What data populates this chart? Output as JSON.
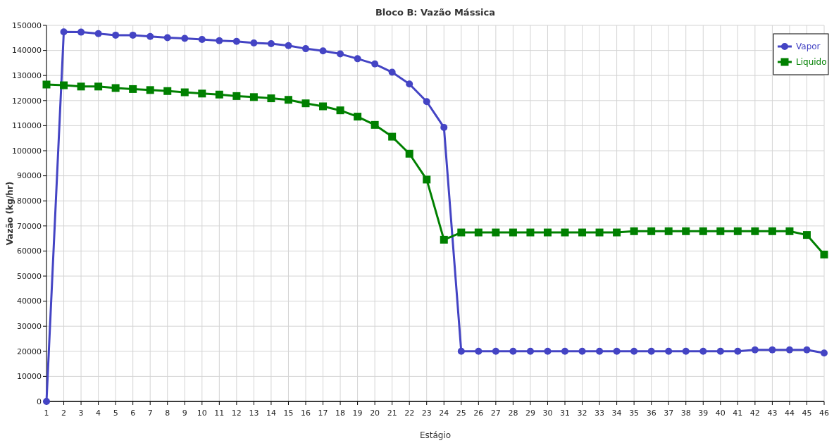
{
  "chart_data": {
    "type": "line",
    "title": "Bloco B: Vazão Mássica",
    "xlabel": "Estágio",
    "ylabel": "Vazão (kg/hr)",
    "x": [
      1,
      2,
      3,
      4,
      5,
      6,
      7,
      8,
      9,
      10,
      11,
      12,
      13,
      14,
      15,
      16,
      17,
      18,
      19,
      20,
      21,
      22,
      23,
      24,
      25,
      26,
      27,
      28,
      29,
      30,
      31,
      32,
      33,
      34,
      35,
      36,
      37,
      38,
      39,
      40,
      41,
      42,
      43,
      44,
      45,
      46
    ],
    "xlim": [
      1,
      46
    ],
    "xticks": [
      1,
      2,
      3,
      4,
      5,
      6,
      7,
      8,
      9,
      10,
      11,
      12,
      13,
      14,
      15,
      16,
      17,
      18,
      19,
      20,
      21,
      22,
      23,
      24,
      25,
      26,
      27,
      28,
      29,
      30,
      31,
      32,
      33,
      34,
      35,
      36,
      37,
      38,
      39,
      40,
      41,
      42,
      43,
      44,
      45,
      46
    ],
    "ylim": [
      0,
      150000
    ],
    "yticks": [
      0,
      10000,
      20000,
      30000,
      40000,
      50000,
      60000,
      70000,
      80000,
      90000,
      100000,
      110000,
      120000,
      130000,
      140000,
      150000
    ],
    "grid": true,
    "legend": "top right",
    "series": [
      {
        "name": "Vapor",
        "color": "#4444c4",
        "marker": "circle",
        "values": [
          0,
          147400,
          147300,
          146700,
          146100,
          146100,
          145600,
          145100,
          144800,
          144400,
          143900,
          143600,
          143000,
          142700,
          141900,
          140700,
          139800,
          138600,
          136700,
          134600,
          131300,
          126600,
          119600,
          109300,
          20000,
          20000,
          20000,
          20000,
          20000,
          20000,
          20000,
          20000,
          20000,
          20000,
          20000,
          20000,
          20000,
          20000,
          20000,
          20000,
          20000,
          20600,
          20600,
          20600,
          20600,
          19300
        ]
      },
      {
        "name": "Liquido",
        "color": "#008000",
        "marker": "square",
        "values": [
          126400,
          126100,
          125600,
          125600,
          125000,
          124600,
          124200,
          123800,
          123300,
          122800,
          122400,
          121800,
          121400,
          120900,
          120300,
          118900,
          117700,
          116100,
          113600,
          110300,
          105600,
          98800,
          88500,
          64500,
          67400,
          67400,
          67400,
          67400,
          67400,
          67400,
          67400,
          67400,
          67400,
          67400,
          67900,
          67900,
          67900,
          67900,
          67900,
          67900,
          67900,
          67900,
          67900,
          67900,
          66400,
          58600
        ]
      }
    ]
  }
}
